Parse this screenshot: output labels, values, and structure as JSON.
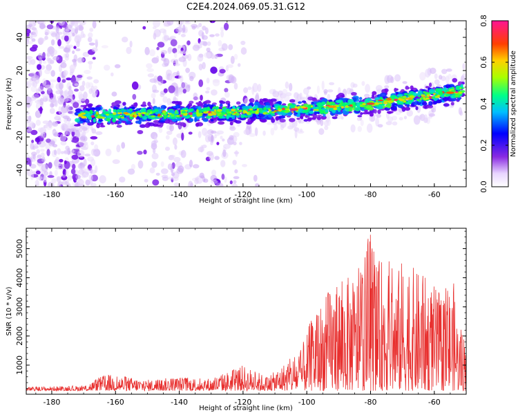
{
  "figure": {
    "title": "C2E4.2024.069.05.31.G12"
  },
  "chart_data": [
    {
      "type": "heatmap",
      "xlabel": "Height of straight line (km)",
      "ylabel": "Frequency (Hz)",
      "xlim": [
        -188,
        -50
      ],
      "ylim": [
        -50,
        50
      ],
      "xticks": [
        -180,
        -160,
        -140,
        -120,
        -100,
        -80,
        -60
      ],
      "yticks": [
        -40,
        -20,
        0,
        20,
        40
      ],
      "colorbar": {
        "label": "Normalized spectral amplitude",
        "range": [
          0.0,
          0.8
        ],
        "ticks": [
          0.0,
          0.2,
          0.4,
          0.6,
          0.8
        ],
        "colormap": [
          "#ffffff",
          "#d9c2ff",
          "#8a2be2",
          "#0000ff",
          "#00ffff",
          "#00ff66",
          "#ffff00",
          "#ff8c00",
          "#ff0000",
          "#ff1493"
        ]
      },
      "ridge": {
        "description_points": [
          {
            "x": -172,
            "freq": -7
          },
          {
            "x": -160,
            "freq": -7
          },
          {
            "x": -140,
            "freq": -6
          },
          {
            "x": -120,
            "freq": -5
          },
          {
            "x": -100,
            "freq": -3
          },
          {
            "x": -80,
            "freq": 0
          },
          {
            "x": -60,
            "freq": 5
          },
          {
            "x": -51,
            "freq": 8
          }
        ],
        "max_amplitude": 0.8
      },
      "grid": false
    },
    {
      "type": "line",
      "xlabel": "Height of straight line (km)",
      "ylabel": "SNR (10 * v/v)",
      "xlim": [
        -188,
        -50
      ],
      "ylim": [
        0,
        5700
      ],
      "xticks": [
        -180,
        -160,
        -140,
        -120,
        -100,
        -80,
        -60
      ],
      "yticks": [
        1000,
        2000,
        3000,
        4000,
        5000
      ],
      "series": [
        {
          "color": "#e8302f",
          "envelope": [
            {
              "x": -188,
              "y": 250
            },
            {
              "x": -170,
              "y": 300
            },
            {
              "x": -163,
              "y": 700
            },
            {
              "x": -150,
              "y": 500
            },
            {
              "x": -140,
              "y": 600
            },
            {
              "x": -130,
              "y": 550
            },
            {
              "x": -120,
              "y": 1000
            },
            {
              "x": -112,
              "y": 600
            },
            {
              "x": -108,
              "y": 1000
            },
            {
              "x": -102,
              "y": 1500
            },
            {
              "x": -98,
              "y": 2800
            },
            {
              "x": -92,
              "y": 3800
            },
            {
              "x": -90,
              "y": 4100
            },
            {
              "x": -85,
              "y": 4000
            },
            {
              "x": -82,
              "y": 4800
            },
            {
              "x": -80,
              "y": 5700
            },
            {
              "x": -78,
              "y": 4500
            },
            {
              "x": -75,
              "y": 4900
            },
            {
              "x": -72,
              "y": 4100
            },
            {
              "x": -70,
              "y": 4700
            },
            {
              "x": -66,
              "y": 4300
            },
            {
              "x": -62,
              "y": 4000
            },
            {
              "x": -58,
              "y": 3500
            },
            {
              "x": -54,
              "y": 3900
            },
            {
              "x": -52,
              "y": 2200
            },
            {
              "x": -50,
              "y": 2300
            }
          ]
        }
      ],
      "grid": false
    }
  ]
}
